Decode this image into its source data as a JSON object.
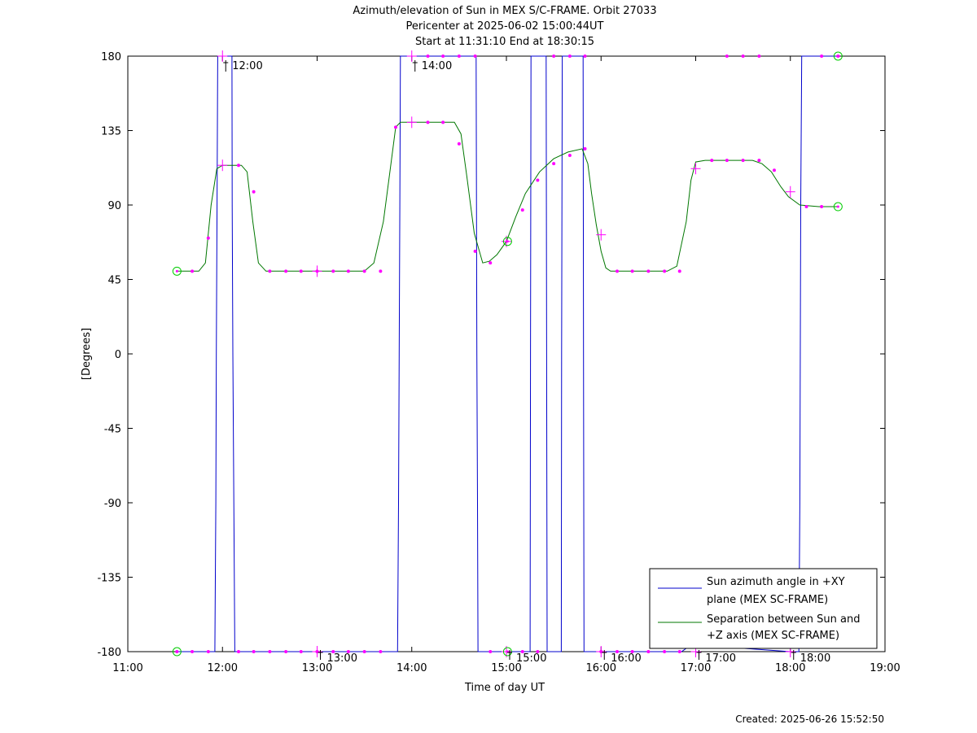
{
  "chart_data": {
    "type": "line",
    "title_lines": [
      "Azimuth/elevation of Sun in MEX S/C-FRAME.  Orbit 27033",
      "Pericenter at 2025-06-02 15:00:44UT",
      "Start at 11:31:10 End at 18:30:15"
    ],
    "xlabel": "Time of day UT",
    "ylabel": "[Degrees]",
    "xlim": [
      11.0,
      19.0
    ],
    "ylim": [
      -180,
      180
    ],
    "xticks": [
      11,
      12,
      13,
      14,
      15,
      16,
      17,
      18,
      19
    ],
    "xtick_labels": [
      "11:00",
      "12:00",
      "13:00",
      "14:00",
      "15:00",
      "16:00",
      "17:00",
      "18:00",
      "19:00"
    ],
    "yticks": [
      180,
      135,
      90,
      45,
      0,
      -45,
      -90,
      -135,
      -180
    ],
    "ytick_labels": [
      "180",
      "135",
      "90",
      "45",
      "0",
      "-45",
      "-90",
      "-135",
      "-180"
    ],
    "legend_position": "bottom-right",
    "series": [
      {
        "name": "Sun azimuth angle in +XY plane (MEX SC-FRAME)",
        "legend_lines": [
          "Sun azimuth angle in +XY",
          "plane (MEX SC-FRAME)"
        ],
        "color": "#0000cc",
        "x": [
          11.519,
          11.92,
          11.93,
          11.935,
          11.943,
          11.95,
          12.1,
          12.103,
          12.11,
          12.12,
          12.13,
          13.85,
          13.86,
          13.867,
          13.874,
          13.88,
          14.68,
          14.688,
          14.695,
          14.7,
          15.25,
          15.255,
          15.26,
          15.42,
          15.425,
          15.43,
          15.58,
          15.583,
          15.59,
          15.81,
          15.815,
          15.82,
          16.85,
          16.95,
          17.5,
          18.0,
          18.09,
          18.1,
          18.11,
          18.12,
          18.504
        ],
        "y": [
          -180,
          -180,
          -90,
          0,
          90,
          180,
          180,
          90,
          0,
          -90,
          -180,
          -180,
          -90,
          0,
          90,
          180,
          180,
          0,
          -90,
          -180,
          -180,
          0,
          180,
          180,
          0,
          -180,
          -180,
          0,
          180,
          180,
          0,
          -180,
          -180,
          -176,
          -178,
          -180,
          -180,
          -90,
          90,
          180,
          180
        ]
      },
      {
        "name": "Separation between Sun and +Z axis (MEX SC-FRAME)",
        "legend_lines": [
          "Separation between Sun and",
          "+Z axis (MEX SC-FRAME)"
        ],
        "color": "#007700",
        "x": [
          11.519,
          11.75,
          11.82,
          11.88,
          11.94,
          12.0,
          12.2,
          12.26,
          12.32,
          12.38,
          12.46,
          12.5,
          13.0,
          13.5,
          13.6,
          13.7,
          13.78,
          13.83,
          13.88,
          14.0,
          14.45,
          14.52,
          14.58,
          14.66,
          14.75,
          14.82,
          14.9,
          15.0,
          15.1,
          15.2,
          15.35,
          15.5,
          15.65,
          15.8,
          15.86,
          15.9,
          15.95,
          16.0,
          16.05,
          16.1,
          16.2,
          16.7,
          16.8,
          16.9,
          16.95,
          17.0,
          17.1,
          17.6,
          17.7,
          17.8,
          17.9,
          17.98,
          18.1,
          18.3,
          18.504
        ],
        "y": [
          50,
          50,
          55,
          90,
          112,
          114,
          114,
          110,
          80,
          55,
          50,
          50,
          50,
          50,
          55,
          80,
          115,
          137,
          140,
          140,
          140,
          133,
          108,
          73,
          55,
          56,
          60,
          68,
          83,
          97,
          110,
          118,
          122,
          124,
          115,
          97,
          78,
          62,
          52,
          50,
          50,
          50,
          53,
          80,
          105,
          116,
          117,
          117,
          115,
          110,
          101,
          95,
          90,
          89,
          89
        ]
      }
    ],
    "marker_points": [
      {
        "series": "azimuth",
        "x": [
          11.519,
          11.68,
          11.85,
          12.17,
          12.33,
          12.5,
          12.67,
          12.83,
          13.0,
          13.17,
          13.33,
          13.5,
          13.67,
          14.17,
          14.33,
          14.5,
          14.67,
          14.83,
          15.17,
          15.33,
          15.5,
          15.67,
          15.83,
          16.0,
          16.17,
          16.33,
          16.5,
          16.67,
          16.83,
          17.33,
          17.5,
          17.67,
          18.33,
          18.504
        ],
        "y": [
          -180,
          -180,
          -180,
          -180,
          -180,
          -180,
          -180,
          -180,
          -180,
          -180,
          -180,
          -180,
          -180,
          180,
          180,
          180,
          180,
          -180,
          -180,
          -180,
          180,
          180,
          180,
          -180,
          -180,
          -180,
          -180,
          -180,
          -180,
          180,
          180,
          180,
          180,
          180
        ]
      },
      {
        "series": "separation",
        "x": [
          11.68,
          11.85,
          12.17,
          12.33,
          12.5,
          12.67,
          12.83,
          13.0,
          13.17,
          13.33,
          13.5,
          13.67,
          13.83,
          14.17,
          14.33,
          14.5,
          14.67,
          14.83,
          15.17,
          15.33,
          15.5,
          15.67,
          15.83,
          16.17,
          16.33,
          16.5,
          16.67,
          16.83,
          17.17,
          17.33,
          17.5,
          17.67,
          17.83,
          18.17,
          18.33
        ],
        "y": [
          50,
          70,
          114,
          98,
          50,
          50,
          50,
          50,
          50,
          50,
          50,
          50,
          137,
          140,
          140,
          127,
          62,
          55,
          87,
          105,
          115,
          120,
          124,
          50,
          50,
          50,
          50,
          50,
          117,
          117,
          117,
          117,
          111,
          89,
          89
        ]
      }
    ],
    "hour_crosses": [
      {
        "series": "azimuth",
        "x": [
          12.0,
          13.0,
          14.0,
          15.0,
          16.0,
          17.0,
          18.0
        ],
        "y": [
          180,
          -180,
          180,
          -180,
          -180,
          -180,
          -180
        ]
      },
      {
        "series": "separation",
        "x": [
          12.0,
          13.0,
          14.0,
          15.0,
          16.0,
          17.0,
          18.0
        ],
        "y": [
          114,
          50,
          140,
          68,
          72,
          112,
          98
        ]
      }
    ],
    "start_end_circles": [
      {
        "x": 11.519,
        "y": -180
      },
      {
        "x": 11.519,
        "y": 50
      },
      {
        "x": 18.504,
        "y": 180
      },
      {
        "x": 18.504,
        "y": 89
      },
      {
        "x": 15.012,
        "y": 68
      },
      {
        "x": 15.012,
        "y": -180
      }
    ],
    "annotations": [
      {
        "text": "12:00",
        "x": 12.0,
        "y": 180
      },
      {
        "text": "13:00",
        "x": 13.0,
        "y": -180
      },
      {
        "text": "14:00",
        "x": 14.0,
        "y": 180
      },
      {
        "text": "15:00",
        "x": 15.0,
        "y": -180
      },
      {
        "text": "16:00",
        "x": 16.0,
        "y": -180
      },
      {
        "text": "17:00",
        "x": 17.0,
        "y": -180
      },
      {
        "text": "18:00",
        "x": 18.0,
        "y": -180
      }
    ],
    "marker_color": "#ff00ff",
    "circle_color": "#00cc00"
  },
  "footer": {
    "created": "Created: 2025-06-26 15:52:50"
  }
}
